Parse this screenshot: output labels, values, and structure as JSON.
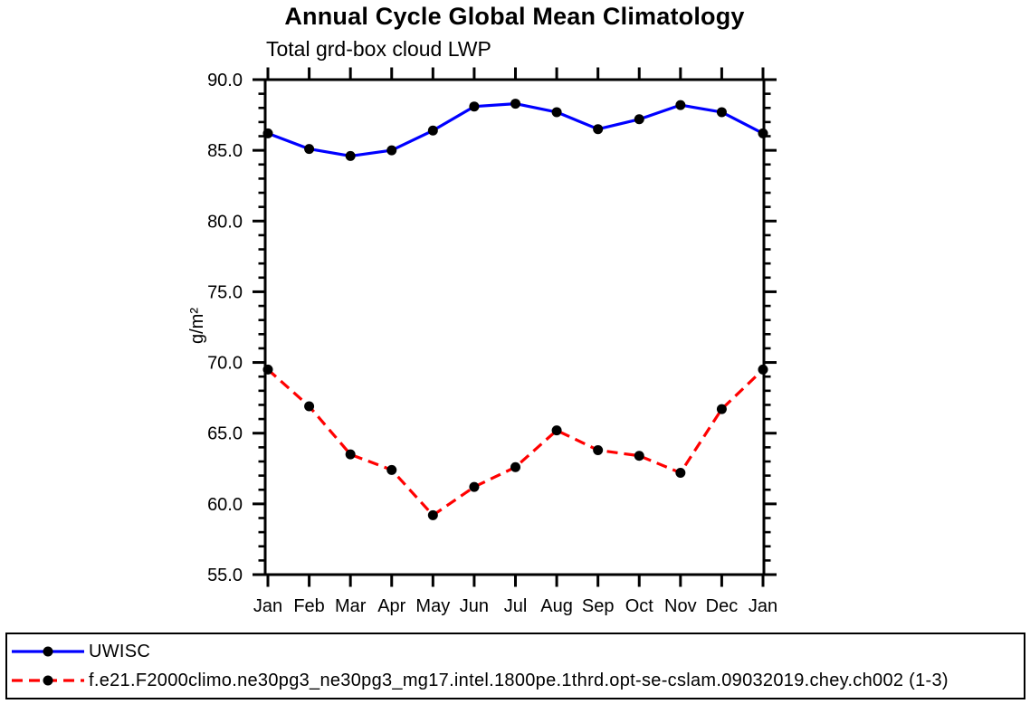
{
  "page": {
    "background_color": "#ffffff",
    "text_color": "#000000"
  },
  "chart_data": {
    "type": "line",
    "title": "Annual Cycle Global Mean Climatology",
    "subtitle": "Total grd-box cloud LWP",
    "ylabel": "g/m²",
    "xlabel": "",
    "categories": [
      "Jan",
      "Feb",
      "Mar",
      "Apr",
      "May",
      "Jun",
      "Jul",
      "Aug",
      "Sep",
      "Oct",
      "Nov",
      "Dec",
      "Jan"
    ],
    "series": [
      {
        "name": "UWISC",
        "color": "#0000ff",
        "line_style": "solid",
        "marker": "filled-circle",
        "marker_color": "#000000",
        "values": [
          86.2,
          85.1,
          84.6,
          85.0,
          86.4,
          88.1,
          88.3,
          87.7,
          86.5,
          87.2,
          88.2,
          87.7,
          86.2
        ]
      },
      {
        "name": "f.e21.F2000climo.ne30pg3_ne30pg3_mg17.intel.1800pe.1thrd.opt-se-cslam.09032019.chey.ch002 (1-3)",
        "color": "#ff0000",
        "line_style": "dashed",
        "marker": "filled-circle",
        "marker_color": "#000000",
        "values": [
          69.5,
          66.9,
          63.5,
          62.4,
          59.2,
          61.2,
          62.6,
          65.2,
          63.8,
          63.4,
          62.2,
          66.7,
          69.5
        ]
      }
    ],
    "ylim": [
      55,
      90
    ],
    "ytick_major_step": 5,
    "ytick_minor_step": 1,
    "ytick_labels": [
      "55.0",
      "60.0",
      "65.0",
      "70.0",
      "75.0",
      "80.0",
      "85.0",
      "90.0"
    ],
    "grid": "off",
    "axis_color": "#000000",
    "legend_position": "bottom-left-boxed"
  }
}
